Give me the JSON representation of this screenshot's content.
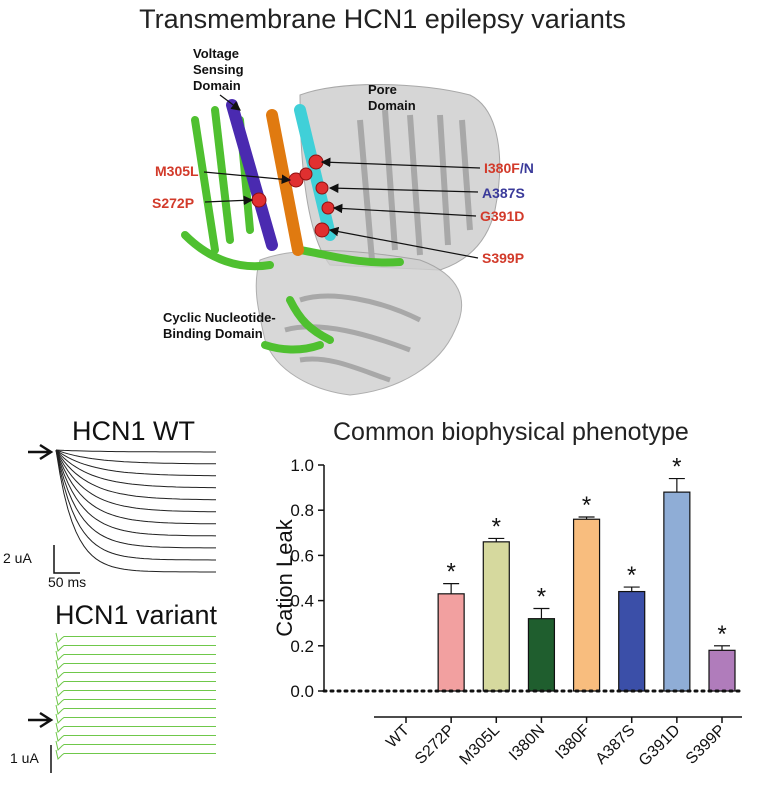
{
  "figure": {
    "title": "Transmembrane HCN1 epilepsy variants"
  },
  "structure": {
    "domains": {
      "voltage_sensing": "Voltage Sensing Domain",
      "pore": "Pore Domain",
      "cyclic_nucleotide": "Cyclic Nucleotide-Binding Domain"
    },
    "mutations": {
      "m305l": "M305L",
      "s272p": "S272P",
      "i380": "I380F",
      "i380_slash": "/",
      "i380_n": "N",
      "a387s": "A387S",
      "g391d": "G391D",
      "s399p": "S399P"
    },
    "colors": {
      "vsd_helix": "#4a2ab0",
      "green_domain": "#4fc030",
      "orange_helix": "#e07a10",
      "cyan_helix": "#40d0d8",
      "red_residue": "#e03030",
      "gray_structure": "#cfcfcf"
    }
  },
  "traces": {
    "wt": {
      "title": "HCN1 WT",
      "scale_y": "2 uA",
      "scale_x": "50 ms",
      "color": "#222222"
    },
    "variant": {
      "title": "HCN1 variant",
      "scale_y": "1 uA",
      "color": "#6fc84a"
    }
  },
  "chart_data": {
    "type": "bar",
    "title": "Common biophysical phenotype",
    "ylabel": "Cation Leak",
    "xlabel": "",
    "ylim": [
      0,
      1.0
    ],
    "yticks": [
      "0.0",
      "0.2",
      "0.4",
      "0.6",
      "0.8",
      "1.0"
    ],
    "categories": [
      "WT",
      "S272P",
      "M305L",
      "I380N",
      "I380F",
      "A387S",
      "G391D",
      "S399P"
    ],
    "values": [
      0,
      0.43,
      0.66,
      0.32,
      0.76,
      0.44,
      0.88,
      0.18
    ],
    "errors": [
      0,
      0.045,
      0.015,
      0.045,
      0.01,
      0.02,
      0.06,
      0.02
    ],
    "significance": [
      "",
      "*",
      "*",
      "*",
      "*",
      "*",
      "*",
      "*"
    ],
    "colors": [
      "#ffffff",
      "#f2a0a0",
      "#d6d99e",
      "#1f5e2e",
      "#f8bd7e",
      "#3b4fa8",
      "#8fadd6",
      "#b07cbb"
    ],
    "baseline": "dotted at 0",
    "grid": false
  }
}
